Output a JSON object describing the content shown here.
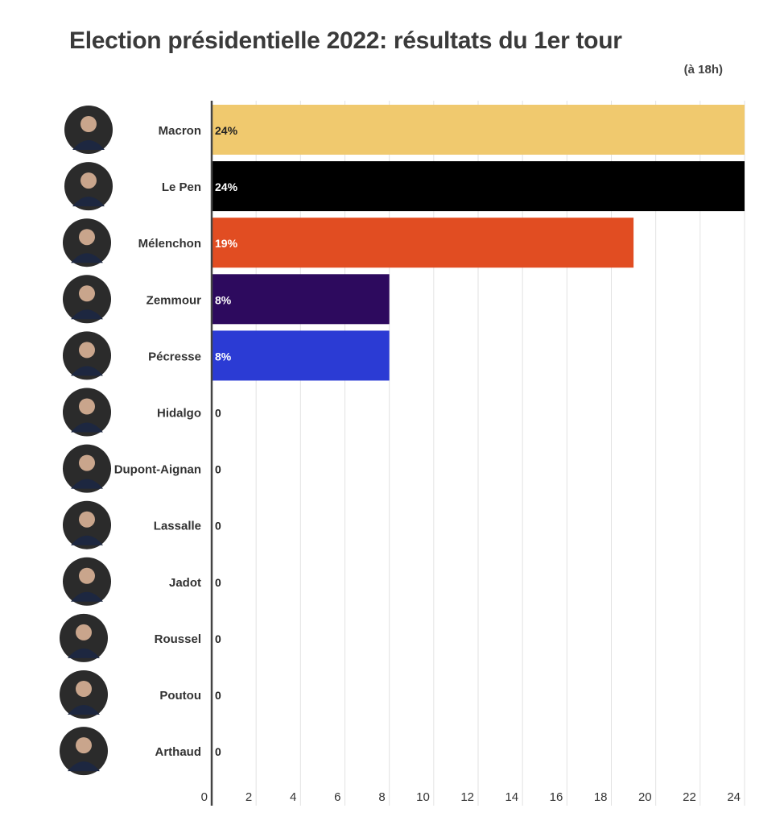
{
  "chart_data": {
    "type": "bar",
    "orientation": "horizontal",
    "title": "Election présidentielle 2022: résultats du 1er tour",
    "subtitle": "(à 18h)",
    "xlabel": "",
    "ylabel": "",
    "xlim": [
      0,
      24
    ],
    "x_ticks": [
      "0",
      "2",
      "4",
      "6",
      "8",
      "10",
      "12",
      "14",
      "16",
      "18",
      "20",
      "22",
      "24"
    ],
    "grid": true,
    "categories": [
      "Macron",
      "Le Pen",
      "Mélenchon",
      "Zemmour",
      "Pécresse",
      "Hidalgo",
      "Dupont-Aignan",
      "Lassalle",
      "Jadot",
      "Roussel",
      "Poutou",
      "Arthaud"
    ],
    "values": [
      24,
      24,
      19,
      8,
      8,
      0,
      0,
      0,
      0,
      0,
      0,
      0
    ],
    "value_labels": [
      "24%",
      "24%",
      "19%",
      "8%",
      "8%",
      "0",
      "0",
      "0",
      "0",
      "0",
      "0",
      "0"
    ],
    "colors": [
      "#f0c96e",
      "#000000",
      "#e14d22",
      "#2d0a5e",
      "#2b3bd4",
      "#cccccc",
      "#cccccc",
      "#cccccc",
      "#cccccc",
      "#cccccc",
      "#cccccc",
      "#cccccc"
    ],
    "label_colors": [
      "#222222",
      "#ffffff",
      "#ffffff",
      "#ffffff",
      "#ffffff",
      "#222222",
      "#222222",
      "#222222",
      "#222222",
      "#222222",
      "#222222",
      "#222222"
    ]
  }
}
